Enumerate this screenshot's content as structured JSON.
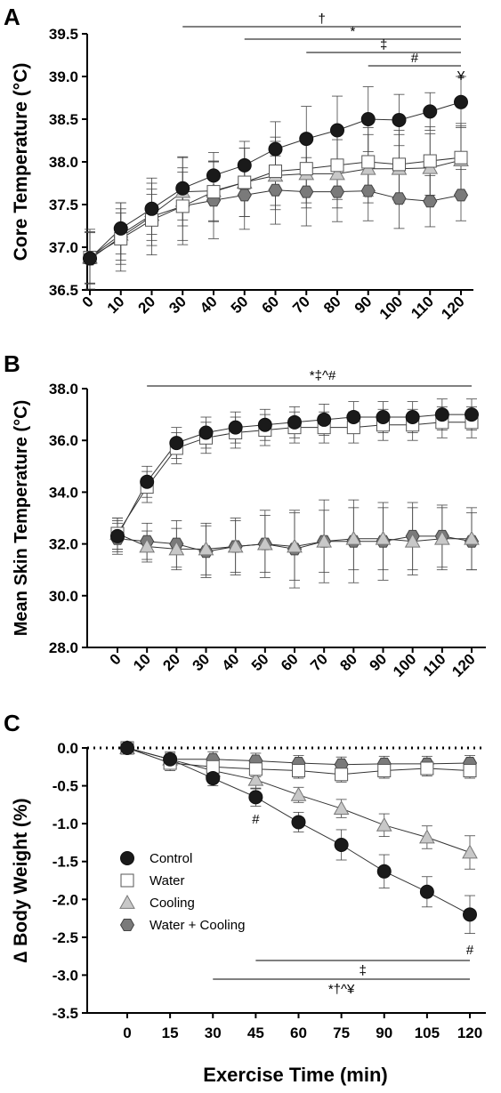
{
  "chart_data": [
    {
      "panel": "A",
      "type": "line",
      "ylabel": "Core Temperature (°C)",
      "xlabel": "",
      "ylim": [
        36.5,
        39.5
      ],
      "yticks": [
        "36.5",
        "37.0",
        "37.5",
        "38.0",
        "38.5",
        "39.0",
        "39.5"
      ],
      "x": [
        0,
        10,
        20,
        30,
        40,
        50,
        60,
        70,
        80,
        90,
        100,
        110,
        120
      ],
      "xtick_labels": [
        "0",
        "10",
        "20",
        "30",
        "40",
        "50",
        "60",
        "70",
        "80",
        "90",
        "100",
        "110",
        "120"
      ],
      "series": [
        {
          "name": "Control",
          "values": [
            36.87,
            37.22,
            37.45,
            37.69,
            37.84,
            37.96,
            38.15,
            38.27,
            38.37,
            38.5,
            38.49,
            38.59,
            38.7
          ],
          "err": [
            0.3,
            0.3,
            0.3,
            0.37,
            0.27,
            0.28,
            0.32,
            0.38,
            0.4,
            0.38,
            0.3,
            0.22,
            0.3
          ]
        },
        {
          "name": "Water",
          "values": [
            36.88,
            37.1,
            37.32,
            37.48,
            37.65,
            37.76,
            37.89,
            37.92,
            37.96,
            38.0,
            37.97,
            38.01,
            38.05
          ],
          "err": [
            0.3,
            0.3,
            0.3,
            0.4,
            0.35,
            0.4,
            0.4,
            0.4,
            0.4,
            0.4,
            0.4,
            0.4,
            0.4
          ]
        },
        {
          "name": "Cooling",
          "values": [
            36.88,
            37.15,
            37.38,
            37.65,
            37.66,
            37.76,
            37.84,
            37.86,
            37.86,
            37.92,
            37.92,
            37.93,
            38.02
          ],
          "err": [
            0.3,
            0.3,
            0.3,
            0.4,
            0.35,
            0.4,
            0.4,
            0.4,
            0.4,
            0.4,
            0.4,
            0.4,
            0.4
          ]
        },
        {
          "name": "Water + Cooling",
          "values": [
            36.86,
            37.12,
            37.36,
            37.48,
            37.55,
            37.61,
            37.67,
            37.65,
            37.65,
            37.66,
            37.57,
            37.54,
            37.61
          ],
          "err": [
            0.35,
            0.4,
            0.45,
            0.45,
            0.45,
            0.4,
            0.4,
            0.4,
            0.35,
            0.35,
            0.35,
            0.3,
            0.3
          ]
        }
      ],
      "annotations": [
        "†",
        "*",
        "‡",
        "#",
        "¥"
      ]
    },
    {
      "panel": "B",
      "type": "line",
      "ylabel": "Mean Skin Temperature (°C)",
      "xlabel": "",
      "ylim": [
        28.0,
        38.0
      ],
      "yticks": [
        "28.0",
        "30.0",
        "32.0",
        "34.0",
        "36.0",
        "38.0"
      ],
      "x": [
        0,
        10,
        20,
        30,
        40,
        50,
        60,
        70,
        80,
        90,
        100,
        110,
        120
      ],
      "xtick_labels": [
        "0",
        "10",
        "20",
        "30",
        "40",
        "50",
        "60",
        "70",
        "80",
        "90",
        "100",
        "110",
        "120"
      ],
      "series": [
        {
          "name": "Control",
          "values": [
            32.3,
            34.4,
            35.9,
            36.3,
            36.5,
            36.6,
            36.7,
            36.8,
            36.9,
            36.9,
            36.9,
            37.0,
            37.0
          ],
          "err": [
            0.6,
            0.6,
            0.6,
            0.6,
            0.6,
            0.6,
            0.6,
            0.6,
            0.6,
            0.6,
            0.6,
            0.6,
            0.6
          ]
        },
        {
          "name": "Water",
          "values": [
            32.4,
            34.2,
            35.7,
            36.1,
            36.3,
            36.4,
            36.5,
            36.5,
            36.5,
            36.6,
            36.6,
            36.7,
            36.7
          ],
          "err": [
            0.6,
            0.6,
            0.6,
            0.6,
            0.6,
            0.6,
            0.6,
            0.6,
            0.6,
            0.6,
            0.6,
            0.6,
            0.6
          ]
        },
        {
          "name": "Cooling",
          "values": [
            32.4,
            31.9,
            31.8,
            31.8,
            31.9,
            32.0,
            31.9,
            32.1,
            32.2,
            32.2,
            32.1,
            32.2,
            32.2
          ],
          "err": [
            0.6,
            0.6,
            0.8,
            1.0,
            1.0,
            1.1,
            1.3,
            1.2,
            1.2,
            1.2,
            1.3,
            1.2,
            1.2
          ]
        },
        {
          "name": "Water + Cooling",
          "values": [
            32.2,
            32.1,
            32.0,
            31.7,
            31.9,
            32.0,
            31.8,
            32.1,
            32.1,
            32.1,
            32.3,
            32.3,
            32.1
          ],
          "err": [
            0.6,
            0.7,
            0.9,
            1.0,
            1.1,
            1.3,
            1.5,
            1.6,
            1.6,
            1.5,
            1.3,
            1.2,
            1.1
          ]
        }
      ],
      "annotations": [
        "*‡^#"
      ]
    },
    {
      "panel": "C",
      "type": "line",
      "ylabel": "∆ Body Weight (%)",
      "xlabel": "Exercise Time (min)",
      "ylim": [
        -3.5,
        0.0
      ],
      "yticks": [
        "-3.5",
        "-3.0",
        "-2.5",
        "-2.0",
        "-1.5",
        "-1.0",
        "-0.5",
        "0.0"
      ],
      "x": [
        0,
        15,
        30,
        45,
        60,
        75,
        90,
        105,
        120
      ],
      "xtick_labels": [
        "0",
        "15",
        "30",
        "45",
        "60",
        "75",
        "90",
        "105",
        "120"
      ],
      "series": [
        {
          "name": "Control",
          "values": [
            0.0,
            -0.15,
            -0.4,
            -0.65,
            -0.98,
            -1.28,
            -1.63,
            -1.9,
            -2.2
          ],
          "err": [
            0.05,
            0.08,
            0.1,
            0.12,
            0.13,
            0.2,
            0.22,
            0.2,
            0.25
          ]
        },
        {
          "name": "Water",
          "values": [
            0.0,
            -0.2,
            -0.25,
            -0.28,
            -0.3,
            -0.35,
            -0.3,
            -0.27,
            -0.3
          ],
          "err": [
            0.05,
            0.1,
            0.1,
            0.1,
            0.1,
            0.1,
            0.1,
            0.1,
            0.1
          ]
        },
        {
          "name": "Cooling",
          "values": [
            0.0,
            -0.15,
            -0.3,
            -0.42,
            -0.62,
            -0.8,
            -1.02,
            -1.18,
            -1.38
          ],
          "err": [
            0.05,
            0.08,
            0.1,
            0.12,
            0.1,
            0.12,
            0.15,
            0.15,
            0.22
          ]
        },
        {
          "name": "Water + Cooling",
          "values": [
            0.0,
            -0.15,
            -0.15,
            -0.17,
            -0.2,
            -0.22,
            -0.21,
            -0.21,
            -0.2
          ],
          "err": [
            0.05,
            0.1,
            0.1,
            0.1,
            0.1,
            0.1,
            0.1,
            0.1,
            0.1
          ]
        }
      ],
      "legend": [
        "Control",
        "Water",
        "Cooling",
        "Water + Cooling"
      ],
      "legend_placement": "lower-left",
      "reference_line": "dotted at 0.0",
      "annotations": [
        "#",
        "#",
        "‡",
        "*†^¥"
      ]
    }
  ],
  "colors": {
    "control": "#1a1a1a",
    "water": "#ffffff",
    "cooling": "#c8c8c8",
    "water_cooling": "#7a7a7a",
    "line": "#333333"
  },
  "panel_labels": [
    "A",
    "B",
    "C"
  ]
}
